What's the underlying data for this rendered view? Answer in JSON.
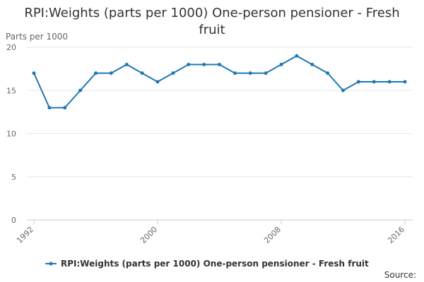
{
  "chart_data": {
    "type": "line",
    "title": "RPI:Weights (parts per 1000) One-person pensioner - Fresh fruit",
    "xlabel": "",
    "ylabel": "Parts per 1000",
    "x": [
      1992,
      1993,
      1994,
      1995,
      1996,
      1997,
      1998,
      1999,
      2000,
      2001,
      2002,
      2003,
      2004,
      2005,
      2006,
      2007,
      2008,
      2009,
      2010,
      2011,
      2012,
      2013,
      2014,
      2015,
      2016
    ],
    "x_tick_labels": [
      "1992",
      "2000",
      "2008",
      "2016"
    ],
    "x_tick_values": [
      1992,
      2000,
      2008,
      2016
    ],
    "y_tick_labels": [
      "0",
      "5",
      "10",
      "15",
      "20"
    ],
    "y_tick_values": [
      0,
      5,
      10,
      15,
      20
    ],
    "ylim": [
      0,
      20
    ],
    "xlim": [
      1992,
      2016
    ],
    "grid": true,
    "legend_position": "bottom",
    "series": [
      {
        "name": "RPI:Weights (parts per 1000) One-person pensioner - Fresh fruit",
        "color": "#1f78b4",
        "values": [
          17,
          13,
          13,
          15,
          17,
          17,
          18,
          17,
          16,
          17,
          18,
          18,
          18,
          17,
          17,
          17,
          18,
          19,
          18,
          17,
          15,
          16,
          16,
          16,
          16
        ]
      }
    ],
    "source_label": "Source:"
  }
}
